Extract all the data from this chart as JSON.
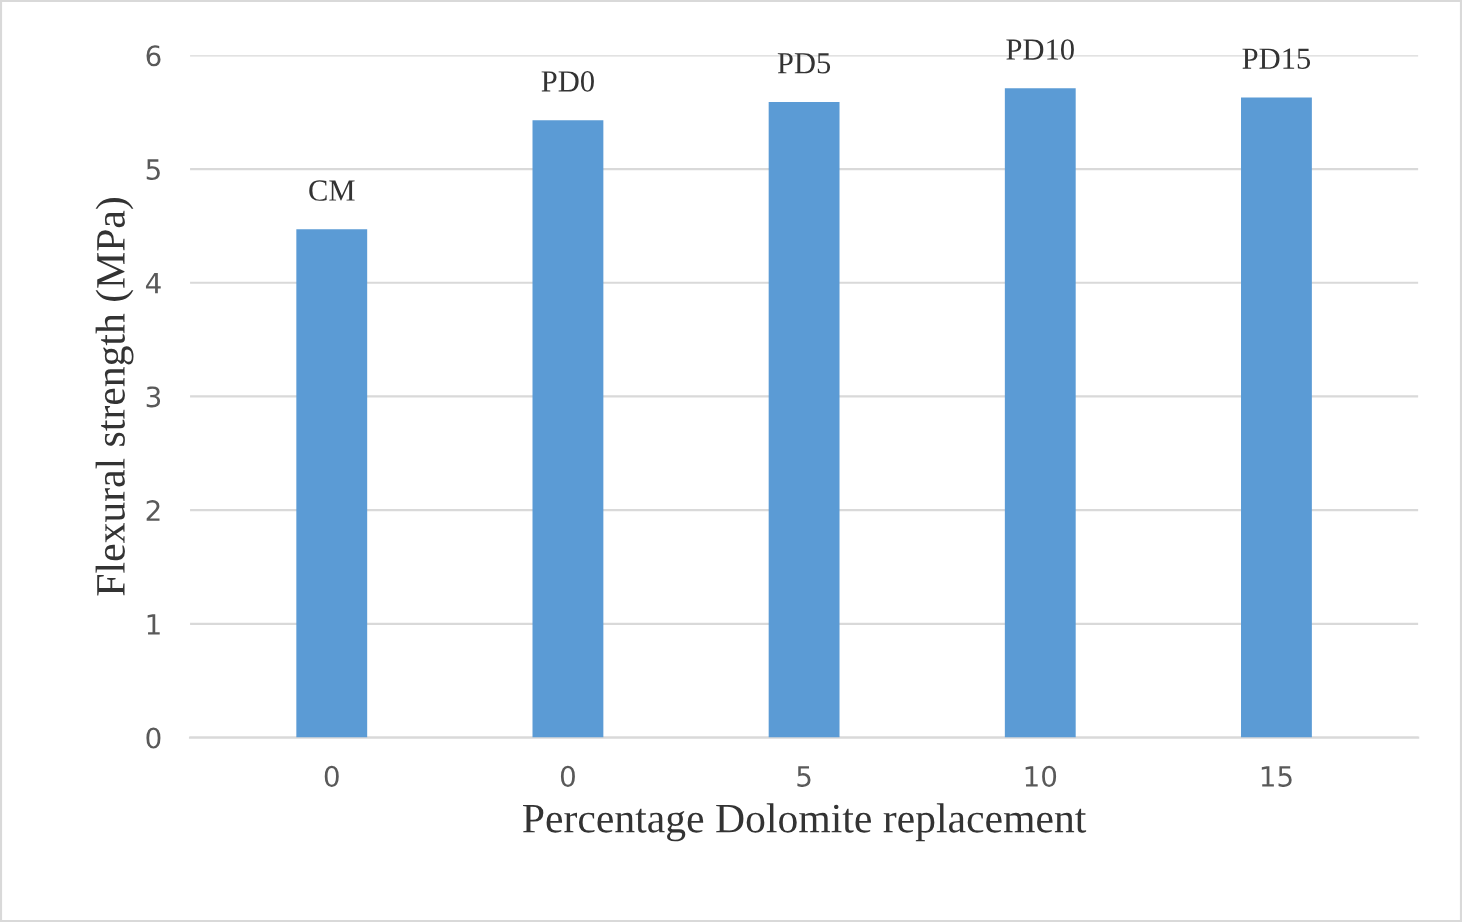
{
  "chart_data": {
    "type": "bar",
    "xlabel": "Percentage Dolomite replacement",
    "ylabel": "Flexural strength (MPa)",
    "categories": [
      "0",
      "0",
      "5",
      "10",
      "15"
    ],
    "values": [
      4.47,
      5.43,
      5.59,
      5.71,
      5.63
    ],
    "value_labels": [
      "CM",
      "PD0",
      "PD5",
      "PD10",
      "PD15"
    ],
    "color": "#5b9bd5",
    "ylim": [
      0,
      6
    ],
    "yticks": [
      0,
      1,
      2,
      3,
      4,
      5,
      6
    ],
    "grid": "y",
    "legend": false
  }
}
